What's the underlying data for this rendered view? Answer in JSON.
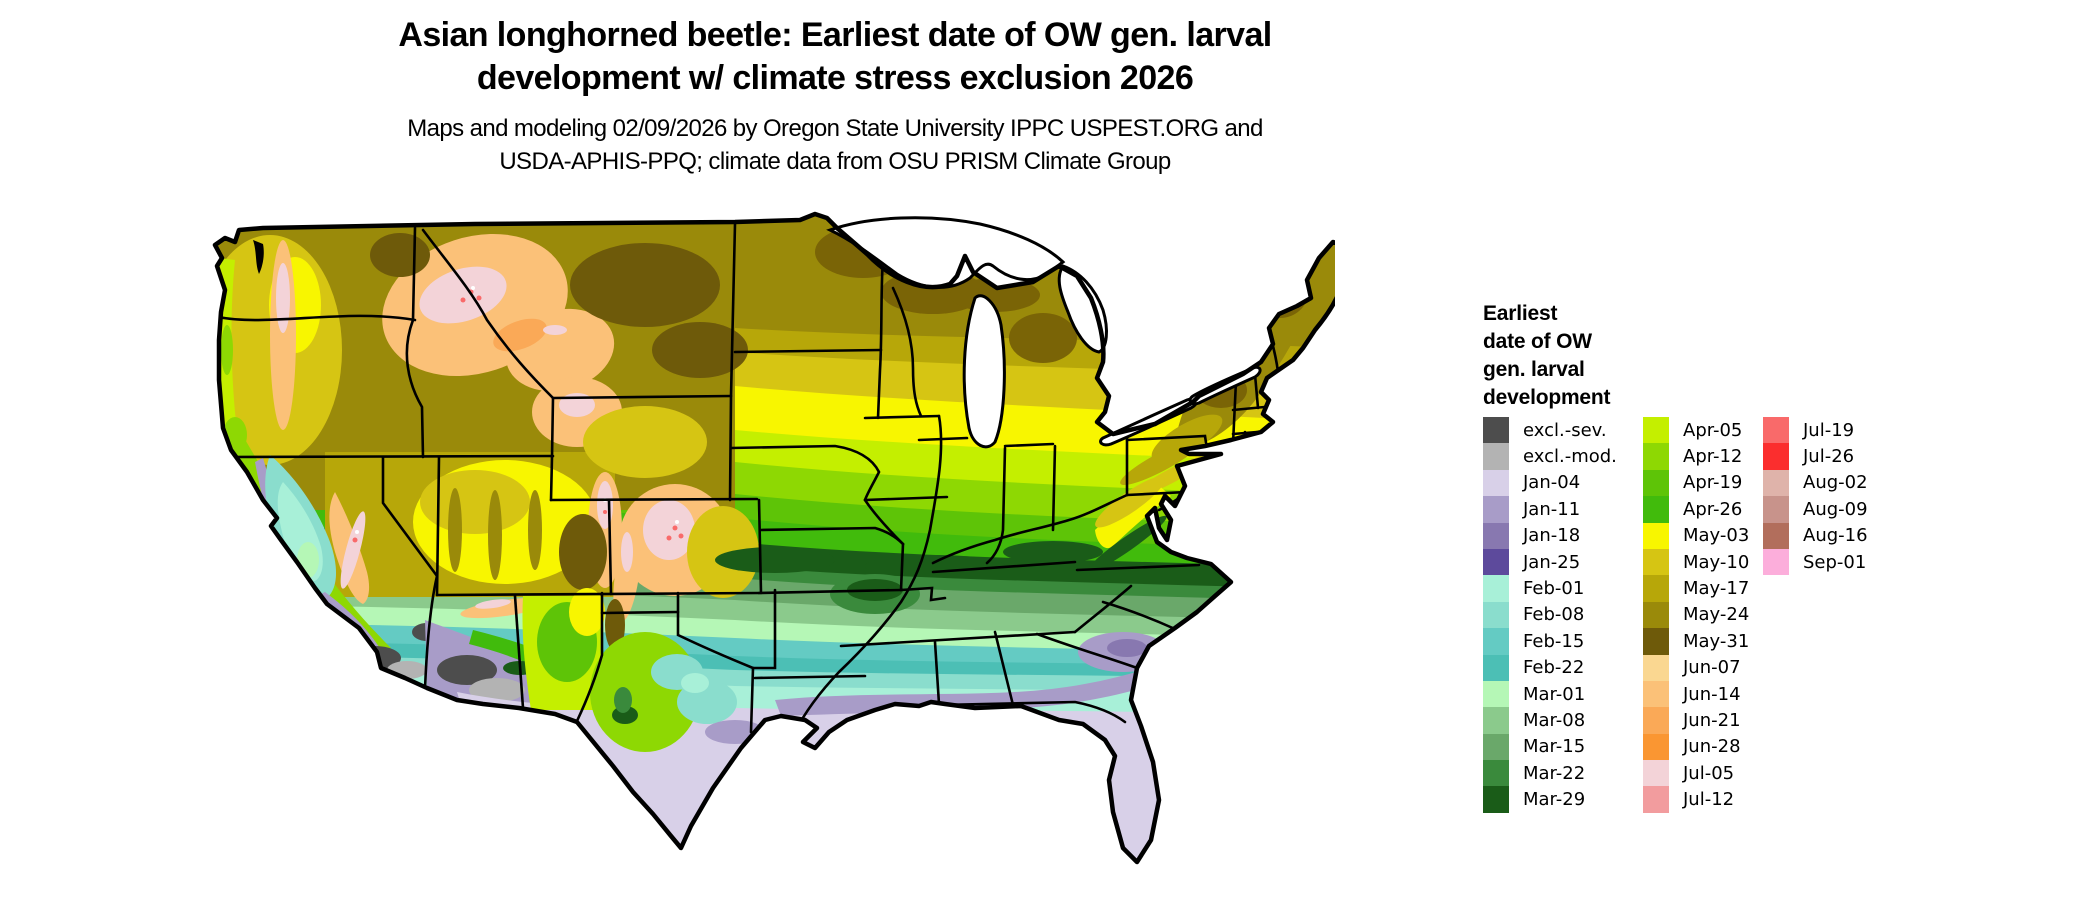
{
  "title": {
    "line1": "Asian longhorned beetle: Earliest date of OW gen. larval",
    "line2": "development w/ climate stress exclusion 2026"
  },
  "subtitle": {
    "line1": "Maps and modeling 02/09/2026 by Oregon State University IPPC USPEST.ORG and",
    "line2": "USDA-APHIS-PPQ; climate data from OSU PRISM Climate Group"
  },
  "legend": {
    "title_lines": [
      "Earliest",
      "date of OW",
      "gen. larval",
      "development"
    ],
    "columns": [
      [
        {
          "label": "excl.-sev.",
          "color": "#4d4d4d"
        },
        {
          "label": "excl.-mod.",
          "color": "#b3b3b3"
        },
        {
          "label": "Jan-04",
          "color": "#d8d0e8"
        },
        {
          "label": "Jan-11",
          "color": "#a89cc8"
        },
        {
          "label": "Jan-18",
          "color": "#8878b0"
        },
        {
          "label": "Jan-25",
          "color": "#5d4a9c"
        },
        {
          "label": "Feb-01",
          "color": "#a8f0d8"
        },
        {
          "label": "Feb-08",
          "color": "#8addcd"
        },
        {
          "label": "Feb-15",
          "color": "#64cbc3"
        },
        {
          "label": "Feb-22",
          "color": "#4cbfb5"
        },
        {
          "label": "Mar-01",
          "color": "#b5f7b6"
        },
        {
          "label": "Mar-08",
          "color": "#8bca8c"
        },
        {
          "label": "Mar-15",
          "color": "#6aa86a"
        },
        {
          "label": "Mar-22",
          "color": "#3a8a3c"
        },
        {
          "label": "Mar-29",
          "color": "#1a5c18"
        }
      ],
      [
        {
          "label": "Apr-05",
          "color": "#c4ef00"
        },
        {
          "label": "Apr-12",
          "color": "#8ed803"
        },
        {
          "label": "Apr-19",
          "color": "#5ec407"
        },
        {
          "label": "Apr-26",
          "color": "#41bb0c"
        },
        {
          "label": "May-03",
          "color": "#f8f600"
        },
        {
          "label": "May-10",
          "color": "#d6c513"
        },
        {
          "label": "May-17",
          "color": "#b7a709"
        },
        {
          "label": "May-24",
          "color": "#9a8a0a"
        },
        {
          "label": "May-31",
          "color": "#6e5a0a"
        },
        {
          "label": "Jun-07",
          "color": "#fad791"
        },
        {
          "label": "Jun-14",
          "color": "#fbc178"
        },
        {
          "label": "Jun-21",
          "color": "#faa957"
        },
        {
          "label": "Jun-28",
          "color": "#fa9632"
        },
        {
          "label": "Jul-05",
          "color": "#f3d3d8"
        },
        {
          "label": "Jul-12",
          "color": "#f29c9e"
        }
      ],
      [
        {
          "label": "Jul-19",
          "color": "#f96a6a"
        },
        {
          "label": "Jul-26",
          "color": "#fb2e2e"
        },
        {
          "label": "Aug-02",
          "color": "#dfb3aa"
        },
        {
          "label": "Aug-09",
          "color": "#c8938b"
        },
        {
          "label": "Aug-16",
          "color": "#b26e5c"
        },
        {
          "label": "Sep-01",
          "color": "#fcaedb"
        }
      ]
    ]
  },
  "map": {
    "type": "choropleth raster map",
    "area": "contiguous United States"
  }
}
